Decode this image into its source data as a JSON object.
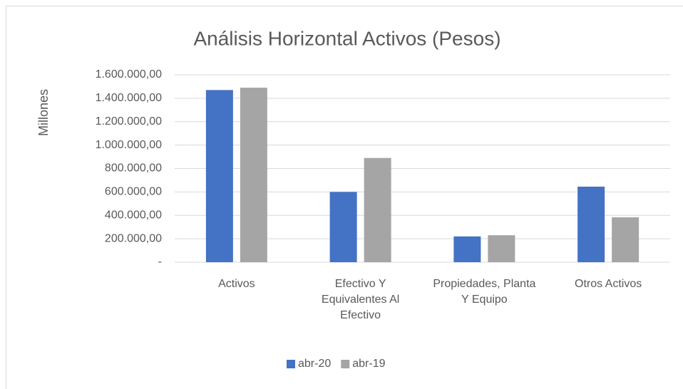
{
  "chart_data": {
    "type": "bar",
    "title": "Análisis Horizontal Activos (Pesos)",
    "y_label": "Millones",
    "categories": [
      "Activos",
      "Efectivo Y Equivalentes Al Efectivo",
      "Propiedades, Planta Y Equipo",
      "Otros Activos"
    ],
    "series": [
      {
        "name": "abr-20",
        "color": "#4472c4",
        "values": [
          1470000,
          600000,
          220000,
          645000
        ]
      },
      {
        "name": "abr-19",
        "color": "#a5a5a5",
        "values": [
          1490000,
          890000,
          230000,
          383000
        ]
      }
    ],
    "ylim": [
      0,
      1600000
    ],
    "yticks": [
      {
        "value": 0,
        "label": "-"
      },
      {
        "value": 200000,
        "label": "200.000,00"
      },
      {
        "value": 400000,
        "label": "400.000,00"
      },
      {
        "value": 600000,
        "label": "600.000,00"
      },
      {
        "value": 800000,
        "label": "800.000,00"
      },
      {
        "value": 1000000,
        "label": "1.000.000,00"
      },
      {
        "value": 1200000,
        "label": "1.200.000,00"
      },
      {
        "value": 1400000,
        "label": "1.400.000,00"
      },
      {
        "value": 1600000,
        "label": "1.600.000,00"
      }
    ],
    "grid": true,
    "legend": "bottom"
  }
}
